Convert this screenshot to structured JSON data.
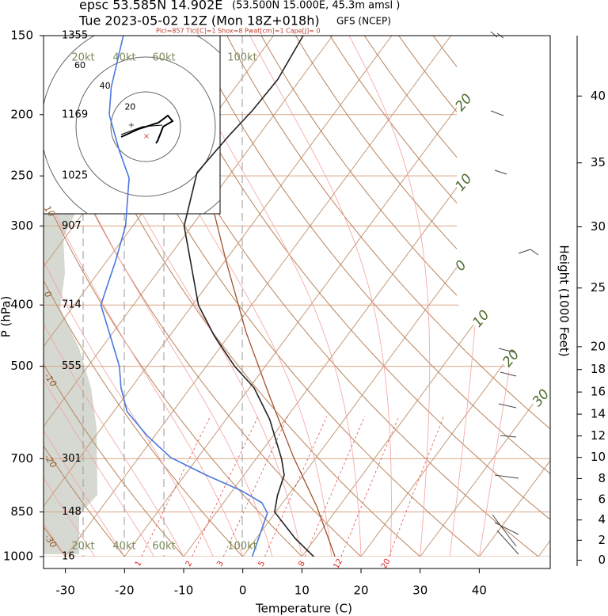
{
  "chart_data": {
    "type": "skewt",
    "title": "epsc 53.585N 14.902E",
    "location": "(53.500N 15.000E,  45.3m amsl )",
    "subtitle": "Tue 2023-05-02 12Z (Mon 18Z+018h)",
    "model": "GFS (NCEP)",
    "indices": "Plcl=857 Tlcl[C]=1 Shox=8 Pwat[cm]=1 Cape[J]= 0",
    "xlabel": "Temperature (C)",
    "ylabel": "P (hPa)",
    "y2label": "Height (1000 Feet)",
    "xlim": [
      -33.7,
      52
    ],
    "xticks": [
      -30,
      -20,
      -10,
      0,
      10,
      20,
      30,
      40
    ],
    "ylim": [
      1000,
      150
    ],
    "log_y": true,
    "yticks": [
      150,
      200,
      250,
      300,
      400,
      500,
      700,
      850,
      1000
    ],
    "ytick_heights": [
      1355,
      1169,
      1025,
      907,
      714,
      555,
      301,
      148,
      16
    ],
    "y2ticks": [
      0,
      2,
      4,
      6,
      8,
      10,
      12,
      14,
      16,
      18,
      20,
      25,
      30,
      35,
      40
    ],
    "isotherm_labels": [
      {
        "value": -20,
        "label": "20"
      },
      {
        "value": -10,
        "label": "10"
      },
      0,
      {
        "value": 10,
        "label": "10"
      },
      20,
      30
    ],
    "dry_adiabat_labels": [
      10,
      0,
      -10,
      -20,
      -30
    ],
    "mixing_ratios": [
      1,
      2,
      3,
      5,
      8,
      12,
      20
    ],
    "speed_labels": [
      "20kt",
      "40kt",
      "60kt",
      "100kt"
    ],
    "hodograph_rings": [
      20,
      40,
      60
    ],
    "series": [
      {
        "color": "#222222",
        "pressure": [
          1000,
          936,
          850,
          800,
          743,
          700,
          607,
          541,
          500,
          448,
          400,
          300,
          247,
          215,
          197,
          176,
          150
        ],
        "values": [
          12.0,
          6.6,
          -0.2,
          -1.8,
          -3.2,
          -5.7,
          -12.6,
          -19.2,
          -25.2,
          -32.4,
          -39.0,
          -51.3,
          -55.8,
          -55.0,
          -54.2,
          -53.8,
          -55.0
        ]
      },
      {
        "color": "#4a78e0",
        "pressure": [
          1000,
          936,
          853,
          822,
          787,
          743,
          697,
          643,
          590,
          541,
          500,
          448,
          400,
          341,
          300,
          252,
          228,
          200,
          181,
          150
        ],
        "values": [
          1.6,
          0.4,
          -1.3,
          -3.5,
          -8.4,
          -16.4,
          -24.6,
          -31.4,
          -37.7,
          -41.7,
          -44.7,
          -50.0,
          -55.5,
          -58.5,
          -61.2,
          -66.6,
          -71.7,
          -77.9,
          -81.0,
          -85.4
        ]
      },
      {
        "color": "#a0522d",
        "pressure": [
          1000,
          834,
          697,
          557,
          442,
          341,
          287
        ],
        "values": [
          15.6,
          6.3,
          -3.8,
          -15.6,
          -27.5,
          -39.8,
          -47.7
        ]
      }
    ]
  }
}
